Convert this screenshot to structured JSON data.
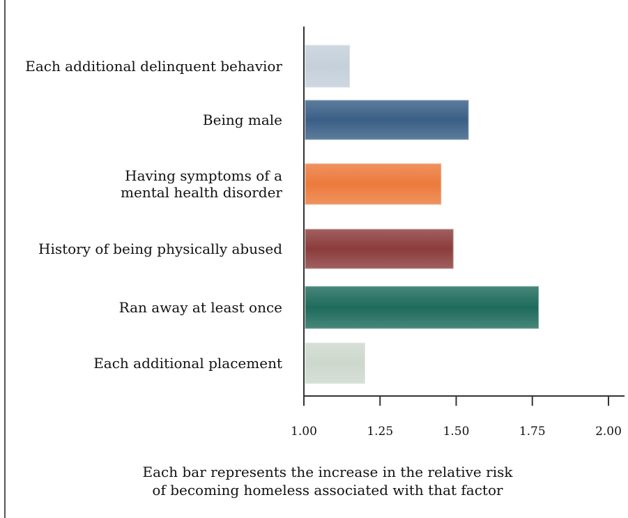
{
  "chart_data": {
    "type": "bar",
    "orientation": "horizontal",
    "categories": [
      [
        "Each additional delinquent behavior"
      ],
      [
        "Being male"
      ],
      [
        "Having symptoms of a",
        "mental health disorder"
      ],
      [
        "History of being physically abused"
      ],
      [
        "Ran away at least once"
      ],
      [
        "Each additional placement"
      ]
    ],
    "values": [
      1.15,
      1.54,
      1.45,
      1.49,
      1.77,
      1.2
    ],
    "colors": [
      "#c5d0da",
      "#3a5f86",
      "#ec7a3c",
      "#8b3c3c",
      "#1e6b5c",
      "#cdd8cd"
    ],
    "xlim": [
      1.0,
      2.0
    ],
    "xticks": [
      1.0,
      1.25,
      1.5,
      1.75,
      2.0
    ],
    "xtick_labels": [
      "1.00",
      "1.25",
      "1.50",
      "1.75",
      "2.00"
    ],
    "caption": [
      "Each bar represents the increase in the relative risk",
      "of becoming homeless associated with that factor"
    ],
    "grid": false
  }
}
